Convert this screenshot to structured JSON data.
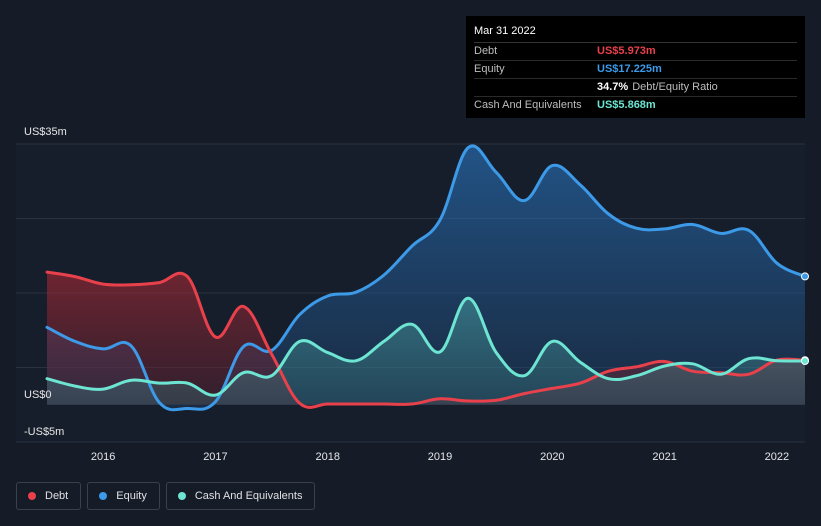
{
  "tooltip": {
    "date": "Mar 31 2022",
    "debt_label": "Debt",
    "debt_value": "US$5.973m",
    "equity_label": "Equity",
    "equity_value": "US$17.225m",
    "ratio_value": "34.7%",
    "ratio_label": "Debt/Equity Ratio",
    "cash_label": "Cash And Equivalents",
    "cash_value": "US$5.868m"
  },
  "legend": {
    "debt": "Debt",
    "equity": "Equity",
    "cash": "Cash And Equivalents"
  },
  "colors": {
    "debt": "#e8414b",
    "equity": "#3d9ae8",
    "cash": "#6de5d2",
    "background": "#151c28"
  },
  "chart_data": {
    "type": "area",
    "title": "",
    "xlabel": "",
    "ylabel": "",
    "ylim": [
      -5,
      35
    ],
    "xlim": [
      2015.5,
      2022.25
    ],
    "y_ticks": [
      {
        "value": 35,
        "label": "US$35m"
      },
      {
        "value": 0,
        "label": "US$0"
      },
      {
        "value": -5,
        "label": "-US$5m"
      }
    ],
    "x_ticks": [
      {
        "value": 2016,
        "label": "2016"
      },
      {
        "value": 2017,
        "label": "2017"
      },
      {
        "value": 2018,
        "label": "2018"
      },
      {
        "value": 2019,
        "label": "2019"
      },
      {
        "value": 2020,
        "label": "2020"
      },
      {
        "value": 2021,
        "label": "2021"
      },
      {
        "value": 2022,
        "label": "2022"
      }
    ],
    "series": [
      {
        "name": "Debt",
        "color": "#e8414b",
        "points": [
          [
            2015.5,
            17.8
          ],
          [
            2015.75,
            17.2
          ],
          [
            2016,
            16.2
          ],
          [
            2016.25,
            16.1
          ],
          [
            2016.5,
            16.4
          ],
          [
            2016.75,
            17.2
          ],
          [
            2017,
            9.1
          ],
          [
            2017.25,
            13.2
          ],
          [
            2017.5,
            6.8
          ],
          [
            2017.75,
            0.2
          ],
          [
            2018,
            0.1
          ],
          [
            2018.25,
            0.1
          ],
          [
            2018.5,
            0.1
          ],
          [
            2018.75,
            0.1
          ],
          [
            2019,
            0.8
          ],
          [
            2019.25,
            0.5
          ],
          [
            2019.5,
            0.6
          ],
          [
            2019.75,
            1.5
          ],
          [
            2020,
            2.2
          ],
          [
            2020.25,
            2.9
          ],
          [
            2020.5,
            4.5
          ],
          [
            2020.75,
            5.1
          ],
          [
            2021,
            5.8
          ],
          [
            2021.25,
            4.5
          ],
          [
            2021.5,
            4.3
          ],
          [
            2021.75,
            4.1
          ],
          [
            2022,
            6.0
          ],
          [
            2022.25,
            5.973
          ]
        ]
      },
      {
        "name": "Equity",
        "color": "#3d9ae8",
        "points": [
          [
            2015.5,
            10.4
          ],
          [
            2015.75,
            8.5
          ],
          [
            2016,
            7.5
          ],
          [
            2016.25,
            7.9
          ],
          [
            2016.5,
            0.3
          ],
          [
            2016.75,
            -0.5
          ],
          [
            2017,
            0.4
          ],
          [
            2017.25,
            7.8
          ],
          [
            2017.5,
            7.3
          ],
          [
            2017.75,
            12.1
          ],
          [
            2018,
            14.6
          ],
          [
            2018.25,
            15.1
          ],
          [
            2018.5,
            17.4
          ],
          [
            2018.75,
            21.3
          ],
          [
            2019,
            24.8
          ],
          [
            2019.25,
            34.5
          ],
          [
            2019.5,
            31.2
          ],
          [
            2019.75,
            27.4
          ],
          [
            2020,
            32.1
          ],
          [
            2020.25,
            29.5
          ],
          [
            2020.5,
            25.6
          ],
          [
            2020.75,
            23.7
          ],
          [
            2021,
            23.6
          ],
          [
            2021.25,
            24.2
          ],
          [
            2021.5,
            23.0
          ],
          [
            2021.75,
            23.4
          ],
          [
            2022,
            19.0
          ],
          [
            2022.25,
            17.225
          ]
        ]
      },
      {
        "name": "Cash And Equivalents",
        "color": "#6de5d2",
        "points": [
          [
            2015.5,
            3.5
          ],
          [
            2015.75,
            2.5
          ],
          [
            2016,
            2.1
          ],
          [
            2016.25,
            3.3
          ],
          [
            2016.5,
            2.9
          ],
          [
            2016.75,
            2.9
          ],
          [
            2017,
            1.3
          ],
          [
            2017.25,
            4.3
          ],
          [
            2017.5,
            3.9
          ],
          [
            2017.75,
            8.5
          ],
          [
            2018,
            7.0
          ],
          [
            2018.25,
            5.9
          ],
          [
            2018.5,
            8.5
          ],
          [
            2018.75,
            10.8
          ],
          [
            2019,
            7.1
          ],
          [
            2019.25,
            14.3
          ],
          [
            2019.5,
            7.0
          ],
          [
            2019.75,
            3.9
          ],
          [
            2020,
            8.5
          ],
          [
            2020.25,
            5.7
          ],
          [
            2020.5,
            3.5
          ],
          [
            2020.75,
            3.9
          ],
          [
            2021,
            5.2
          ],
          [
            2021.25,
            5.5
          ],
          [
            2021.5,
            4.1
          ],
          [
            2021.75,
            6.2
          ],
          [
            2022,
            5.9
          ],
          [
            2022.25,
            5.868
          ]
        ]
      }
    ]
  }
}
